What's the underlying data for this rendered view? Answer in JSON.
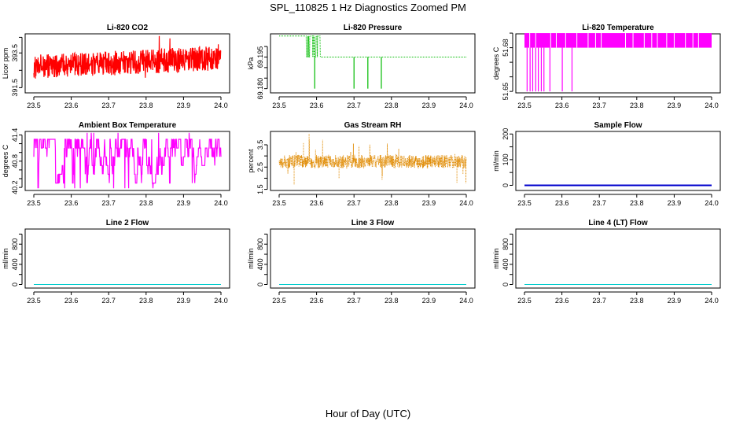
{
  "figure": {
    "title": "SPL_110825  1 Hz Diagnostics Zoomed PM",
    "xlabel": "Hour of Day (UTC)"
  },
  "chart_data": [
    {
      "type": "line",
      "title": "Li-820 CO2",
      "ylabel": "Licor ppm",
      "xlim": [
        23.5,
        24.0
      ],
      "ylim": [
        391.2,
        394.6
      ],
      "x_ticks": [
        "23.5",
        "23.6",
        "23.7",
        "23.8",
        "23.9",
        "24.0"
      ],
      "y_ticks": [
        "391.5",
        "393.5"
      ],
      "y_tick_values": [
        391.5,
        392.5,
        393.5,
        394.4
      ],
      "color": "#ff0000",
      "pattern": "noise",
      "base": [
        392.7,
        393.2
      ],
      "amp": 0.7
    },
    {
      "type": "line",
      "title": "Li-820 Pressure",
      "ylabel": "kPa",
      "xlim": [
        23.5,
        24.0
      ],
      "ylim": [
        69.178,
        69.206
      ],
      "x_ticks": [
        "23.5",
        "23.6",
        "23.7",
        "23.8",
        "23.9",
        "24.0"
      ],
      "y_ticks": [
        "69.180",
        "69.195"
      ],
      "y_tick_values": [
        69.18,
        69.185,
        69.19,
        69.195,
        69.2
      ],
      "color": "#00bb00",
      "pattern": "pressure",
      "levels": {
        "high": 69.205,
        "mid": 69.195,
        "low": 69.18
      }
    },
    {
      "type": "line",
      "title": "Li-820 Temperature",
      "ylabel": "degrees C",
      "xlim": [
        23.5,
        24.0
      ],
      "ylim": [
        51.649,
        51.6895
      ],
      "x_ticks": [
        "23.5",
        "23.6",
        "23.7",
        "23.8",
        "23.9",
        "24.0"
      ],
      "y_ticks": [
        "51.65",
        "51.68"
      ],
      "y_tick_values": [
        51.65,
        51.66,
        51.67,
        51.68,
        51.69
      ],
      "color": "#ff00ff",
      "pattern": "temperature",
      "levels": {
        "high": 51.69,
        "mid": 51.68,
        "low": 51.65
      }
    },
    {
      "type": "line",
      "title": "Ambient Box Temperature",
      "ylabel": "degrees C",
      "xlim": [
        23.5,
        24.0
      ],
      "ylim": [
        40.13,
        41.48
      ],
      "x_ticks": [
        "23.5",
        "23.6",
        "23.7",
        "23.8",
        "23.9",
        "24.0"
      ],
      "y_ticks": [
        "40.2",
        "40.8",
        "41.4"
      ],
      "y_tick_values": [
        40.2,
        40.4,
        40.6,
        40.8,
        41.0,
        41.2,
        41.4
      ],
      "color": "#ff00ff",
      "pattern": "box",
      "levels": [
        40.3,
        40.5,
        40.7,
        40.9,
        41.1,
        41.3
      ]
    },
    {
      "type": "scatter",
      "title": "Gas Stream RH",
      "ylabel": "percent",
      "xlim": [
        23.5,
        24.0
      ],
      "ylim": [
        1.45,
        4.1
      ],
      "x_ticks": [
        "23.5",
        "23.6",
        "23.7",
        "23.8",
        "23.9",
        "24.0"
      ],
      "y_ticks": [
        "1.5",
        "2.5",
        "3.5"
      ],
      "y_tick_values": [
        1.5,
        2.0,
        2.5,
        3.0,
        3.5
      ],
      "color": "#e08a00",
      "pattern": "rh",
      "base": 2.75,
      "amp": 0.3
    },
    {
      "type": "line",
      "title": "Sample Flow",
      "ylabel": "ml/min",
      "xlim": [
        23.5,
        24.0
      ],
      "ylim": [
        -20,
        210
      ],
      "x_ticks": [
        "23.5",
        "23.6",
        "23.7",
        "23.8",
        "23.9",
        "24.0"
      ],
      "y_ticks": [
        "0",
        "100",
        "200"
      ],
      "y_tick_values": [
        0,
        50,
        100,
        150,
        200
      ],
      "color": "#0000cc",
      "pattern": "flat",
      "value": 0
    },
    {
      "type": "line",
      "title": "Line 2 Flow",
      "ylabel": "ml/min",
      "xlim": [
        23.5,
        24.0
      ],
      "ylim": [
        -70,
        1100
      ],
      "x_ticks": [
        "23.5",
        "23.6",
        "23.7",
        "23.8",
        "23.9",
        "24.0"
      ],
      "y_ticks": [
        "0",
        "400",
        "800"
      ],
      "y_tick_values": [
        0,
        200,
        400,
        600,
        800,
        1000
      ],
      "color": "#00cccc",
      "pattern": "flat",
      "value": 0
    },
    {
      "type": "line",
      "title": "Line 3 Flow",
      "ylabel": "ml/min",
      "xlim": [
        23.5,
        24.0
      ],
      "ylim": [
        -70,
        1100
      ],
      "x_ticks": [
        "23.5",
        "23.6",
        "23.7",
        "23.8",
        "23.9",
        "24.0"
      ],
      "y_ticks": [
        "0",
        "400",
        "800"
      ],
      "y_tick_values": [
        0,
        200,
        400,
        600,
        800,
        1000
      ],
      "color": "#00cccc",
      "pattern": "flat",
      "value": 0
    },
    {
      "type": "line",
      "title": "Line 4 (LT) Flow",
      "ylabel": "ml/min",
      "xlim": [
        23.5,
        24.0
      ],
      "ylim": [
        -70,
        1100
      ],
      "x_ticks": [
        "23.5",
        "23.6",
        "23.7",
        "23.8",
        "23.9",
        "24.0"
      ],
      "y_ticks": [
        "0",
        "400",
        "800"
      ],
      "y_tick_values": [
        0,
        200,
        400,
        600,
        800,
        1000
      ],
      "color": "#00cccc",
      "pattern": "flat",
      "value": 0
    }
  ]
}
